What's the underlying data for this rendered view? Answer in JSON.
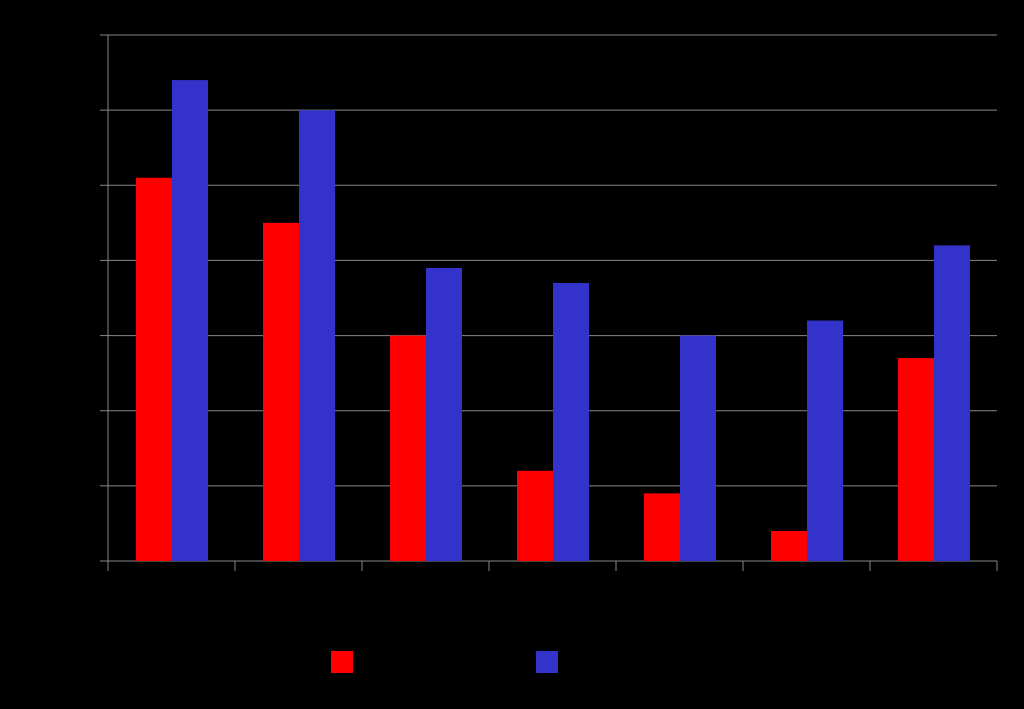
{
  "chart_data": {
    "type": "bar",
    "categories": [
      null,
      null,
      null,
      null,
      null,
      null,
      null
    ],
    "series": [
      {
        "color": "#ff0000",
        "values": [
          5.1,
          4.5,
          3.0,
          1.2,
          0.9,
          0.4,
          2.7
        ]
      },
      {
        "color": "#3333cc",
        "values": [
          6.4,
          6.0,
          3.9,
          3.7,
          3.0,
          3.2,
          4.2
        ]
      }
    ],
    "ylim": [
      0,
      7
    ],
    "yticks": [
      0,
      1,
      2,
      3,
      4,
      5,
      6,
      7
    ],
    "grid": true,
    "legend": "bottom"
  }
}
